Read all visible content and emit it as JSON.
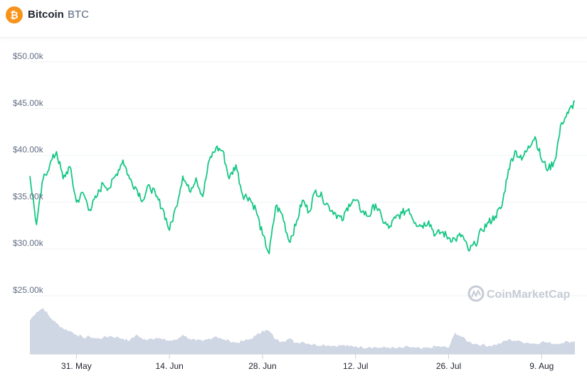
{
  "header": {
    "coin_name": "Bitcoin",
    "coin_symbol": "BTC",
    "coin_icon": "bitcoin-icon",
    "icon_color": "#f7931a"
  },
  "watermark": {
    "text": "CoinMarketCap",
    "icon": "coinmarketcap-logo-icon"
  },
  "colors": {
    "price_line": "#16c784",
    "volume_fill": "#cfd6e4",
    "grid": "#eff2f5"
  },
  "chart_data": {
    "type": "line",
    "y_ticks": [
      {
        "value": 50000,
        "label": "$50.00k"
      },
      {
        "value": 45000,
        "label": "$45.00k"
      },
      {
        "value": 40000,
        "label": "$40.00k"
      },
      {
        "value": 35000,
        "label": "$35.00k"
      },
      {
        "value": 30000,
        "label": "$30.00k"
      },
      {
        "value": 25000,
        "label": "$25.00k"
      }
    ],
    "ylim": [
      25000,
      50000
    ],
    "xlim": [
      "2021-05-24",
      "2021-08-14"
    ],
    "x_ticks": [
      {
        "date": "2021-05-31",
        "label": "31. May"
      },
      {
        "date": "2021-06-14",
        "label": "14. Jun"
      },
      {
        "date": "2021-06-28",
        "label": "28. Jun"
      },
      {
        "date": "2021-07-12",
        "label": "12. Jul"
      },
      {
        "date": "2021-07-26",
        "label": "26. Jul"
      },
      {
        "date": "2021-08-09",
        "label": "9. Aug"
      }
    ],
    "grid": true,
    "series": [
      {
        "kind": "price",
        "points": [
          [
            "2021-05-24",
            37800
          ],
          [
            "2021-05-25",
            32600
          ],
          [
            "2021-05-26",
            37500
          ],
          [
            "2021-05-27",
            39000
          ],
          [
            "2021-05-28",
            40400
          ],
          [
            "2021-05-29",
            37500
          ],
          [
            "2021-05-30",
            38800
          ],
          [
            "2021-05-31",
            35000
          ],
          [
            "2021-06-01",
            36000
          ],
          [
            "2021-06-02",
            34200
          ],
          [
            "2021-06-03",
            35500
          ],
          [
            "2021-06-04",
            37000
          ],
          [
            "2021-06-05",
            36500
          ],
          [
            "2021-06-06",
            38000
          ],
          [
            "2021-06-07",
            39500
          ],
          [
            "2021-06-08",
            37500
          ],
          [
            "2021-06-09",
            36500
          ],
          [
            "2021-06-10",
            35200
          ],
          [
            "2021-06-11",
            36800
          ],
          [
            "2021-06-12",
            35600
          ],
          [
            "2021-06-13",
            34300
          ],
          [
            "2021-06-14",
            32000
          ],
          [
            "2021-06-15",
            34500
          ],
          [
            "2021-06-16",
            37800
          ],
          [
            "2021-06-17",
            36200
          ],
          [
            "2021-06-18",
            37600
          ],
          [
            "2021-06-19",
            35600
          ],
          [
            "2021-06-20",
            39500
          ],
          [
            "2021-06-21",
            40800
          ],
          [
            "2021-06-22",
            40500
          ],
          [
            "2021-06-23",
            37500
          ],
          [
            "2021-06-24",
            39000
          ],
          [
            "2021-06-25",
            35800
          ],
          [
            "2021-06-26",
            35500
          ],
          [
            "2021-06-27",
            34200
          ],
          [
            "2021-06-28",
            31500
          ],
          [
            "2021-06-29",
            29500
          ],
          [
            "2021-06-30",
            34600
          ],
          [
            "2021-07-01",
            33600
          ],
          [
            "2021-07-02",
            30800
          ],
          [
            "2021-07-03",
            32500
          ],
          [
            "2021-07-04",
            35200
          ],
          [
            "2021-07-05",
            34000
          ],
          [
            "2021-07-06",
            36300
          ],
          [
            "2021-07-07",
            35500
          ],
          [
            "2021-07-08",
            34500
          ],
          [
            "2021-07-09",
            33800
          ],
          [
            "2021-07-10",
            33000
          ],
          [
            "2021-07-11",
            34800
          ],
          [
            "2021-07-12",
            35200
          ],
          [
            "2021-07-13",
            34000
          ],
          [
            "2021-07-14",
            33500
          ],
          [
            "2021-07-15",
            34800
          ],
          [
            "2021-07-16",
            33200
          ],
          [
            "2021-07-17",
            32200
          ],
          [
            "2021-07-18",
            33300
          ],
          [
            "2021-07-19",
            33800
          ],
          [
            "2021-07-20",
            34300
          ],
          [
            "2021-07-21",
            32800
          ],
          [
            "2021-07-22",
            32500
          ],
          [
            "2021-07-23",
            33000
          ],
          [
            "2021-07-24",
            31500
          ],
          [
            "2021-07-25",
            31800
          ],
          [
            "2021-07-26",
            31200
          ],
          [
            "2021-07-27",
            31000
          ],
          [
            "2021-07-28",
            31500
          ],
          [
            "2021-07-29",
            29800
          ],
          [
            "2021-07-30",
            30500
          ],
          [
            "2021-07-31",
            32000
          ],
          [
            "2021-08-01",
            32800
          ],
          [
            "2021-08-02",
            33500
          ],
          [
            "2021-08-03",
            34500
          ],
          [
            "2021-08-04",
            38500
          ],
          [
            "2021-08-05",
            40500
          ],
          [
            "2021-08-06",
            39500
          ],
          [
            "2021-08-07",
            41000
          ],
          [
            "2021-08-08",
            42000
          ],
          [
            "2021-08-09",
            39500
          ],
          [
            "2021-08-10",
            38500
          ],
          [
            "2021-08-11",
            39500
          ],
          [
            "2021-08-12",
            43500
          ],
          [
            "2021-08-13",
            44500
          ],
          [
            "2021-08-14",
            45800
          ]
        ]
      },
      {
        "kind": "volume",
        "points": [
          [
            "2021-05-24",
            0.66
          ],
          [
            "2021-05-25",
            0.82
          ],
          [
            "2021-05-26",
            0.9
          ],
          [
            "2021-05-27",
            0.72
          ],
          [
            "2021-05-28",
            0.6
          ],
          [
            "2021-05-29",
            0.5
          ],
          [
            "2021-05-30",
            0.45
          ],
          [
            "2021-05-31",
            0.38
          ],
          [
            "2021-06-01",
            0.32
          ],
          [
            "2021-06-02",
            0.34
          ],
          [
            "2021-06-03",
            0.3
          ],
          [
            "2021-06-04",
            0.32
          ],
          [
            "2021-06-05",
            0.35
          ],
          [
            "2021-06-06",
            0.33
          ],
          [
            "2021-06-07",
            0.3
          ],
          [
            "2021-06-08",
            0.26
          ],
          [
            "2021-06-09",
            0.38
          ],
          [
            "2021-06-10",
            0.28
          ],
          [
            "2021-06-11",
            0.3
          ],
          [
            "2021-06-12",
            0.32
          ],
          [
            "2021-06-13",
            0.28
          ],
          [
            "2021-06-14",
            0.26
          ],
          [
            "2021-06-15",
            0.27
          ],
          [
            "2021-06-16",
            0.38
          ],
          [
            "2021-06-17",
            0.3
          ],
          [
            "2021-06-18",
            0.26
          ],
          [
            "2021-06-19",
            0.25
          ],
          [
            "2021-06-20",
            0.3
          ],
          [
            "2021-06-21",
            0.35
          ],
          [
            "2021-06-22",
            0.28
          ],
          [
            "2021-06-23",
            0.26
          ],
          [
            "2021-06-24",
            0.22
          ],
          [
            "2021-06-25",
            0.25
          ],
          [
            "2021-06-26",
            0.28
          ],
          [
            "2021-06-27",
            0.36
          ],
          [
            "2021-06-28",
            0.46
          ],
          [
            "2021-06-29",
            0.45
          ],
          [
            "2021-06-30",
            0.28
          ],
          [
            "2021-07-01",
            0.25
          ],
          [
            "2021-07-02",
            0.3
          ],
          [
            "2021-07-03",
            0.22
          ],
          [
            "2021-07-04",
            0.24
          ],
          [
            "2021-07-05",
            0.2
          ],
          [
            "2021-07-06",
            0.18
          ],
          [
            "2021-07-07",
            0.18
          ],
          [
            "2021-07-08",
            0.17
          ],
          [
            "2021-07-09",
            0.16
          ],
          [
            "2021-07-10",
            0.17
          ],
          [
            "2021-07-11",
            0.15
          ],
          [
            "2021-07-12",
            0.15
          ],
          [
            "2021-07-13",
            0.13
          ],
          [
            "2021-07-14",
            0.14
          ],
          [
            "2021-07-15",
            0.13
          ],
          [
            "2021-07-16",
            0.12
          ],
          [
            "2021-07-17",
            0.13
          ],
          [
            "2021-07-18",
            0.11
          ],
          [
            "2021-07-19",
            0.12
          ],
          [
            "2021-07-20",
            0.14
          ],
          [
            "2021-07-21",
            0.12
          ],
          [
            "2021-07-22",
            0.1
          ],
          [
            "2021-07-23",
            0.12
          ],
          [
            "2021-07-24",
            0.15
          ],
          [
            "2021-07-25",
            0.14
          ],
          [
            "2021-07-26",
            0.12
          ],
          [
            "2021-07-27",
            0.42
          ],
          [
            "2021-07-28",
            0.33
          ],
          [
            "2021-07-29",
            0.24
          ],
          [
            "2021-07-30",
            0.2
          ],
          [
            "2021-07-31",
            0.18
          ],
          [
            "2021-08-01",
            0.16
          ],
          [
            "2021-08-02",
            0.18
          ],
          [
            "2021-08-03",
            0.22
          ],
          [
            "2021-08-04",
            0.28
          ],
          [
            "2021-08-05",
            0.26
          ],
          [
            "2021-08-06",
            0.24
          ],
          [
            "2021-08-07",
            0.22
          ],
          [
            "2021-08-08",
            0.2
          ],
          [
            "2021-08-09",
            0.24
          ],
          [
            "2021-08-10",
            0.22
          ],
          [
            "2021-08-11",
            0.2
          ],
          [
            "2021-08-12",
            0.22
          ],
          [
            "2021-08-13",
            0.24
          ],
          [
            "2021-08-14",
            0.25
          ]
        ]
      }
    ]
  }
}
